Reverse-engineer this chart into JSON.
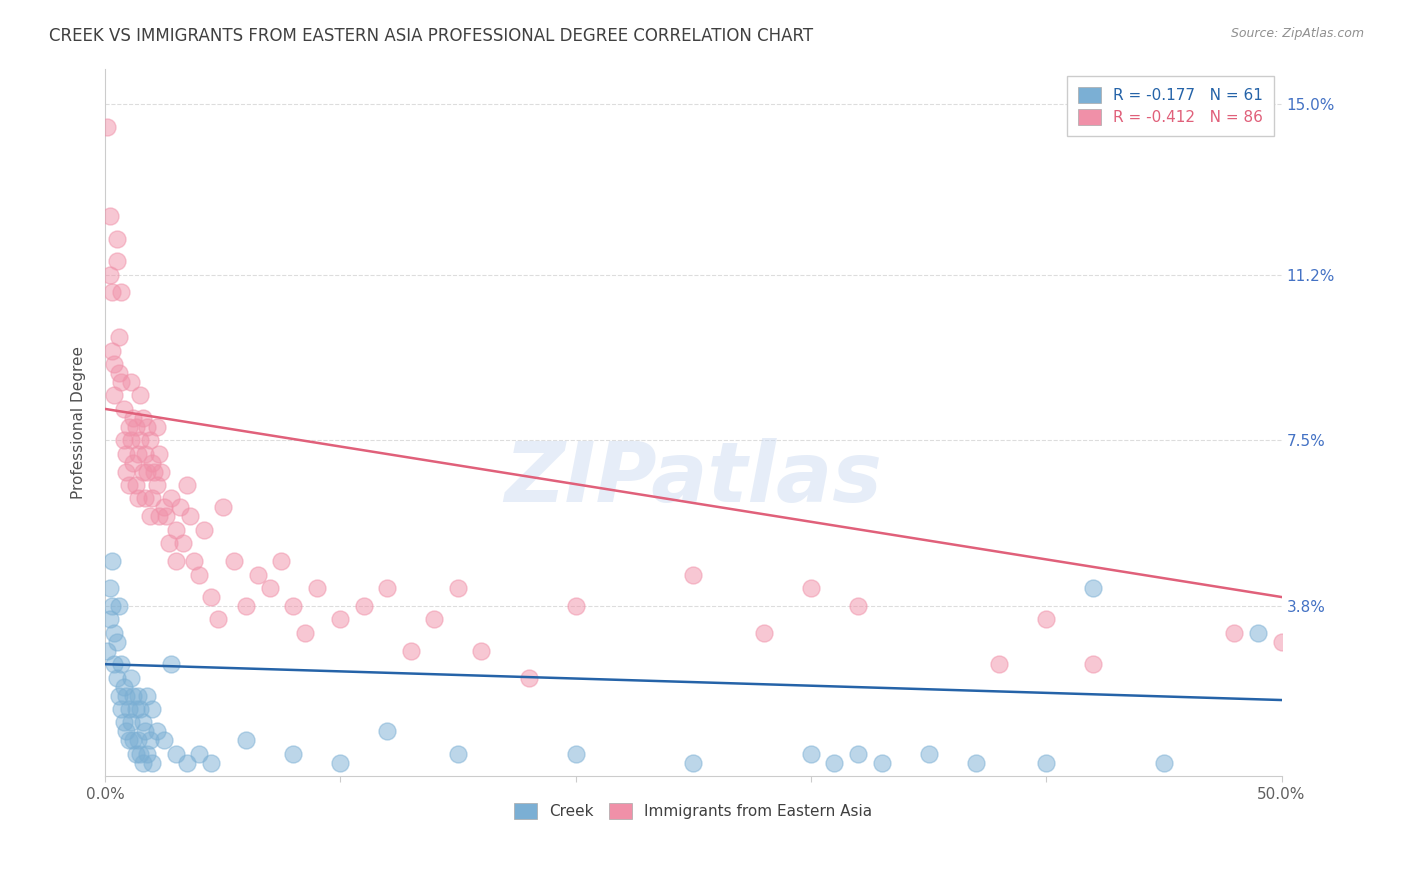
{
  "title": "CREEK VS IMMIGRANTS FROM EASTERN ASIA PROFESSIONAL DEGREE CORRELATION CHART",
  "source": "Source: ZipAtlas.com",
  "ylabel": "Professional Degree",
  "xlim": [
    0.0,
    0.5
  ],
  "ylim": [
    0.0,
    0.158
  ],
  "ytick_positions": [
    0.038,
    0.075,
    0.112,
    0.15
  ],
  "ytick_labels": [
    "3.8%",
    "7.5%",
    "11.2%",
    "15.0%"
  ],
  "creek_color": "#7bafd4",
  "eastern_asia_color": "#f090a8",
  "creek_line_color": "#2563a8",
  "eastern_asia_line_color": "#e0607a",
  "watermark": "ZIPatlas",
  "creek_points": [
    [
      0.001,
      0.028
    ],
    [
      0.002,
      0.035
    ],
    [
      0.002,
      0.042
    ],
    [
      0.003,
      0.048
    ],
    [
      0.003,
      0.038
    ],
    [
      0.004,
      0.032
    ],
    [
      0.004,
      0.025
    ],
    [
      0.005,
      0.03
    ],
    [
      0.005,
      0.022
    ],
    [
      0.006,
      0.038
    ],
    [
      0.006,
      0.018
    ],
    [
      0.007,
      0.025
    ],
    [
      0.007,
      0.015
    ],
    [
      0.008,
      0.02
    ],
    [
      0.008,
      0.012
    ],
    [
      0.009,
      0.018
    ],
    [
      0.009,
      0.01
    ],
    [
      0.01,
      0.015
    ],
    [
      0.01,
      0.008
    ],
    [
      0.011,
      0.022
    ],
    [
      0.011,
      0.012
    ],
    [
      0.012,
      0.018
    ],
    [
      0.012,
      0.008
    ],
    [
      0.013,
      0.015
    ],
    [
      0.013,
      0.005
    ],
    [
      0.014,
      0.018
    ],
    [
      0.014,
      0.008
    ],
    [
      0.015,
      0.015
    ],
    [
      0.015,
      0.005
    ],
    [
      0.016,
      0.012
    ],
    [
      0.016,
      0.003
    ],
    [
      0.017,
      0.01
    ],
    [
      0.018,
      0.018
    ],
    [
      0.018,
      0.005
    ],
    [
      0.019,
      0.008
    ],
    [
      0.02,
      0.015
    ],
    [
      0.02,
      0.003
    ],
    [
      0.022,
      0.01
    ],
    [
      0.025,
      0.008
    ],
    [
      0.028,
      0.025
    ],
    [
      0.03,
      0.005
    ],
    [
      0.035,
      0.003
    ],
    [
      0.04,
      0.005
    ],
    [
      0.045,
      0.003
    ],
    [
      0.06,
      0.008
    ],
    [
      0.08,
      0.005
    ],
    [
      0.1,
      0.003
    ],
    [
      0.12,
      0.01
    ],
    [
      0.15,
      0.005
    ],
    [
      0.2,
      0.005
    ],
    [
      0.25,
      0.003
    ],
    [
      0.3,
      0.005
    ],
    [
      0.31,
      0.003
    ],
    [
      0.32,
      0.005
    ],
    [
      0.33,
      0.003
    ],
    [
      0.35,
      0.005
    ],
    [
      0.37,
      0.003
    ],
    [
      0.4,
      0.003
    ],
    [
      0.42,
      0.042
    ],
    [
      0.45,
      0.003
    ],
    [
      0.49,
      0.032
    ]
  ],
  "eastern_asia_points": [
    [
      0.001,
      0.145
    ],
    [
      0.002,
      0.125
    ],
    [
      0.002,
      0.112
    ],
    [
      0.003,
      0.108
    ],
    [
      0.003,
      0.095
    ],
    [
      0.004,
      0.092
    ],
    [
      0.004,
      0.085
    ],
    [
      0.005,
      0.12
    ],
    [
      0.005,
      0.115
    ],
    [
      0.006,
      0.098
    ],
    [
      0.006,
      0.09
    ],
    [
      0.007,
      0.108
    ],
    [
      0.007,
      0.088
    ],
    [
      0.008,
      0.082
    ],
    [
      0.008,
      0.075
    ],
    [
      0.009,
      0.072
    ],
    [
      0.009,
      0.068
    ],
    [
      0.01,
      0.078
    ],
    [
      0.01,
      0.065
    ],
    [
      0.011,
      0.088
    ],
    [
      0.011,
      0.075
    ],
    [
      0.012,
      0.08
    ],
    [
      0.012,
      0.07
    ],
    [
      0.013,
      0.078
    ],
    [
      0.013,
      0.065
    ],
    [
      0.014,
      0.072
    ],
    [
      0.014,
      0.062
    ],
    [
      0.015,
      0.085
    ],
    [
      0.015,
      0.075
    ],
    [
      0.016,
      0.08
    ],
    [
      0.016,
      0.068
    ],
    [
      0.017,
      0.072
    ],
    [
      0.017,
      0.062
    ],
    [
      0.018,
      0.078
    ],
    [
      0.018,
      0.068
    ],
    [
      0.019,
      0.075
    ],
    [
      0.019,
      0.058
    ],
    [
      0.02,
      0.07
    ],
    [
      0.02,
      0.062
    ],
    [
      0.021,
      0.068
    ],
    [
      0.022,
      0.078
    ],
    [
      0.022,
      0.065
    ],
    [
      0.023,
      0.072
    ],
    [
      0.023,
      0.058
    ],
    [
      0.024,
      0.068
    ],
    [
      0.025,
      0.06
    ],
    [
      0.026,
      0.058
    ],
    [
      0.027,
      0.052
    ],
    [
      0.028,
      0.062
    ],
    [
      0.03,
      0.055
    ],
    [
      0.03,
      0.048
    ],
    [
      0.032,
      0.06
    ],
    [
      0.033,
      0.052
    ],
    [
      0.035,
      0.065
    ],
    [
      0.036,
      0.058
    ],
    [
      0.038,
      0.048
    ],
    [
      0.04,
      0.045
    ],
    [
      0.042,
      0.055
    ],
    [
      0.045,
      0.04
    ],
    [
      0.048,
      0.035
    ],
    [
      0.05,
      0.06
    ],
    [
      0.055,
      0.048
    ],
    [
      0.06,
      0.038
    ],
    [
      0.065,
      0.045
    ],
    [
      0.07,
      0.042
    ],
    [
      0.075,
      0.048
    ],
    [
      0.08,
      0.038
    ],
    [
      0.085,
      0.032
    ],
    [
      0.09,
      0.042
    ],
    [
      0.1,
      0.035
    ],
    [
      0.11,
      0.038
    ],
    [
      0.12,
      0.042
    ],
    [
      0.13,
      0.028
    ],
    [
      0.14,
      0.035
    ],
    [
      0.15,
      0.042
    ],
    [
      0.16,
      0.028
    ],
    [
      0.18,
      0.022
    ],
    [
      0.2,
      0.038
    ],
    [
      0.25,
      0.045
    ],
    [
      0.28,
      0.032
    ],
    [
      0.3,
      0.042
    ],
    [
      0.32,
      0.038
    ],
    [
      0.38,
      0.025
    ],
    [
      0.4,
      0.035
    ],
    [
      0.42,
      0.025
    ],
    [
      0.48,
      0.032
    ],
    [
      0.5,
      0.03
    ]
  ],
  "background_color": "#ffffff",
  "grid_color": "#dddddd",
  "title_color": "#404040",
  "source_color": "#909090",
  "creek_trendline": [
    0.0,
    0.5,
    0.025,
    0.017
  ],
  "ea_trendline": [
    0.0,
    0.5,
    0.082,
    0.04
  ]
}
